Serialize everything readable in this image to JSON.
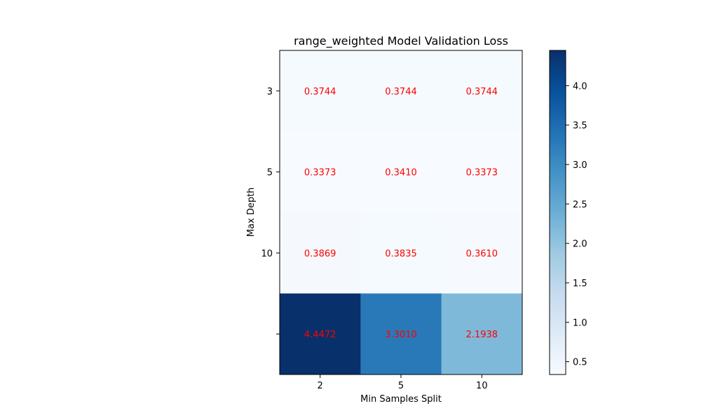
{
  "chart_data": {
    "type": "heatmap",
    "title": "range_weighted Model Validation Loss",
    "xlabel": "Min Samples Split",
    "ylabel": "Max Depth",
    "x_categories": [
      "2",
      "5",
      "10"
    ],
    "y_categories": [
      "3",
      "5",
      "10",
      ""
    ],
    "values": [
      [
        0.3744,
        0.3744,
        0.3744
      ],
      [
        0.3373,
        0.341,
        0.3373
      ],
      [
        0.3869,
        0.3835,
        0.361
      ],
      [
        4.4472,
        3.301,
        2.1938
      ]
    ],
    "value_labels": [
      [
        "0.3744",
        "0.3744",
        "0.3744"
      ],
      [
        "0.3373",
        "0.3410",
        "0.3373"
      ],
      [
        "0.3869",
        "0.3835",
        "0.3610"
      ],
      [
        "4.4472",
        "3.3010",
        "2.1938"
      ]
    ],
    "colormap": "Blues",
    "vmin": 0.3373,
    "vmax": 4.4472,
    "annotation_color": "#ff0000",
    "colorbar_ticks": [
      0.5,
      1.0,
      1.5,
      2.0,
      2.5,
      3.0,
      3.5,
      4.0
    ],
    "colorbar_tick_labels": [
      "0.5",
      "1.0",
      "1.5",
      "2.0",
      "2.5",
      "3.0",
      "3.5",
      "4.0"
    ]
  }
}
